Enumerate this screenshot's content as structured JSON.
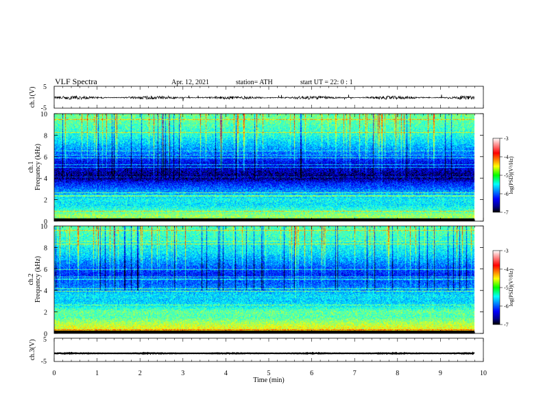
{
  "header": {
    "title": "VLF  Spectra",
    "date": "Apr. 12, 2021",
    "station": "station= ATH",
    "start": "start  UT  =    22: 0   : 1"
  },
  "chart_data": {
    "type": "heatmap",
    "xlabel": "Time  (min)",
    "xlim": [
      0,
      10
    ],
    "x_ticks": [
      "0",
      "1",
      "2",
      "3",
      "4",
      "5",
      "6",
      "7",
      "8",
      "9",
      "10"
    ],
    "data_end_min": 9.8,
    "panels": [
      {
        "id": "ch1-waveform",
        "type": "line",
        "ylabel": "ch.1(V)",
        "ylim": [
          -5,
          5
        ],
        "y_ticks": [
          "5",
          "-5"
        ],
        "baseline_v": -0.2,
        "amplitude_v": 0.8
      },
      {
        "id": "ch1-spectrogram",
        "type": "heatmap",
        "ylabel_1": "ch.1",
        "ylabel_2": "Frequency  (kHz)",
        "ylim": [
          0,
          10
        ],
        "y_ticks": [
          "0",
          "2",
          "4",
          "6",
          "8",
          "10"
        ],
        "freq_profile_khz": [
          0,
          0.5,
          1,
          1.5,
          2,
          2.5,
          3,
          3.5,
          4,
          4.5,
          5,
          5.5,
          6,
          6.5,
          7,
          7.5,
          8,
          8.5,
          9,
          9.5,
          10
        ],
        "log_psd_profile": [
          -5.0,
          -4.9,
          -5.3,
          -5.6,
          -5.5,
          -5.8,
          -6.1,
          -6.4,
          -6.9,
          -6.8,
          -6.6,
          -6.5,
          -6.2,
          -6.0,
          -5.8,
          -5.6,
          -5.4,
          -5.3,
          -5.2,
          -5.1,
          -5.1
        ],
        "colorbar": {
          "label": "log(PSD)(V²/Hz)",
          "range": [
            -7,
            -3
          ],
          "ticks": [
            "-3",
            "-4",
            "-5",
            "-6",
            "-7"
          ]
        }
      },
      {
        "id": "ch2-spectrogram",
        "type": "heatmap",
        "ylabel_1": "ch.2",
        "ylabel_2": "Frequency  (kHz)",
        "ylim": [
          0,
          10
        ],
        "y_ticks": [
          "0",
          "2",
          "4",
          "6",
          "8",
          "10"
        ],
        "freq_profile_khz": [
          0,
          0.5,
          1,
          1.5,
          2,
          2.5,
          3,
          3.5,
          4,
          4.5,
          5,
          5.5,
          6,
          6.5,
          7,
          7.5,
          8,
          8.5,
          9,
          9.5,
          10
        ],
        "log_psd_profile": [
          -5.0,
          -4.6,
          -4.9,
          -5.2,
          -5.1,
          -5.5,
          -5.7,
          -5.6,
          -5.9,
          -6.1,
          -6.2,
          -6.4,
          -6.2,
          -6.0,
          -5.8,
          -5.6,
          -5.5,
          -5.4,
          -5.3,
          -5.2,
          -5.2
        ],
        "colorbar": {
          "label": "log(PSD)(V²/Hz)",
          "range": [
            -7,
            -3
          ],
          "ticks": [
            "-3",
            "-4",
            "-5",
            "-6",
            "-7"
          ]
        }
      },
      {
        "id": "ch3-waveform",
        "type": "line",
        "ylabel": "ch.3(V)",
        "ylim": [
          -5,
          5
        ],
        "y_ticks": [
          "5",
          "-5"
        ],
        "baseline_v": -1.5,
        "amplitude_v": 0.15
      }
    ]
  }
}
